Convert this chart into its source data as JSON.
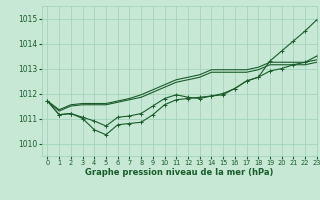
{
  "title": "Graphe pression niveau de la mer (hPa)",
  "xlim": [
    -0.5,
    23
  ],
  "ylim": [
    1009.5,
    1015.5
  ],
  "yticks": [
    1010,
    1011,
    1012,
    1013,
    1014,
    1015
  ],
  "xticks": [
    0,
    1,
    2,
    3,
    4,
    5,
    6,
    7,
    8,
    9,
    10,
    11,
    12,
    13,
    14,
    15,
    16,
    17,
    18,
    19,
    20,
    21,
    22,
    23
  ],
  "bg_color": "#c6e8d5",
  "grid_color": "#9ecfb8",
  "line_color": "#1a5c2a",
  "line1_x": [
    0,
    1,
    2,
    3,
    4,
    5,
    6,
    7,
    8,
    9,
    10,
    11,
    12,
    13,
    14,
    15,
    16,
    17,
    18,
    19,
    20,
    21,
    22,
    23
  ],
  "line1": [
    1011.7,
    1011.15,
    1011.2,
    1011.0,
    1010.55,
    1010.35,
    1010.75,
    1010.8,
    1010.85,
    1011.15,
    1011.55,
    1011.75,
    1011.8,
    1011.85,
    1011.9,
    1012.0,
    1012.2,
    1012.5,
    1012.65,
    1013.3,
    1013.7,
    1014.1,
    1014.5,
    1014.95
  ],
  "line2_x": [
    0,
    1,
    2,
    3,
    4,
    5,
    6,
    7,
    8,
    9,
    10,
    11,
    12,
    13,
    14,
    15,
    16,
    17,
    18,
    19,
    20,
    21,
    22,
    23
  ],
  "line2": [
    1011.7,
    1011.15,
    1011.2,
    1011.05,
    1010.9,
    1010.7,
    1011.05,
    1011.1,
    1011.2,
    1011.5,
    1011.8,
    1011.95,
    1011.85,
    1011.8,
    1011.9,
    1011.95,
    1012.2,
    1012.5,
    1012.65,
    1012.9,
    1013.0,
    1013.15,
    1013.25,
    1013.5
  ],
  "line3_x": [
    0,
    1,
    2,
    3,
    4,
    5,
    6,
    7,
    8,
    9,
    10,
    11,
    12,
    13,
    14,
    15,
    16,
    17,
    18,
    19,
    20,
    21,
    22,
    23
  ],
  "line3": [
    1011.7,
    1011.3,
    1011.5,
    1011.55,
    1011.55,
    1011.55,
    1011.65,
    1011.75,
    1011.85,
    1012.05,
    1012.25,
    1012.45,
    1012.55,
    1012.65,
    1012.85,
    1012.85,
    1012.85,
    1012.85,
    1012.95,
    1013.15,
    1013.15,
    1013.15,
    1013.15,
    1013.25
  ],
  "line4_x": [
    0,
    1,
    2,
    3,
    4,
    5,
    6,
    7,
    8,
    9,
    10,
    11,
    12,
    13,
    14,
    15,
    16,
    17,
    18,
    19,
    20,
    21,
    22,
    23
  ],
  "line4": [
    1011.7,
    1011.35,
    1011.55,
    1011.6,
    1011.6,
    1011.6,
    1011.7,
    1011.8,
    1011.95,
    1012.15,
    1012.35,
    1012.55,
    1012.65,
    1012.75,
    1012.95,
    1012.95,
    1012.95,
    1012.95,
    1013.05,
    1013.25,
    1013.25,
    1013.25,
    1013.25,
    1013.35
  ],
  "figsize": [
    3.2,
    2.0
  ],
  "dpi": 100
}
